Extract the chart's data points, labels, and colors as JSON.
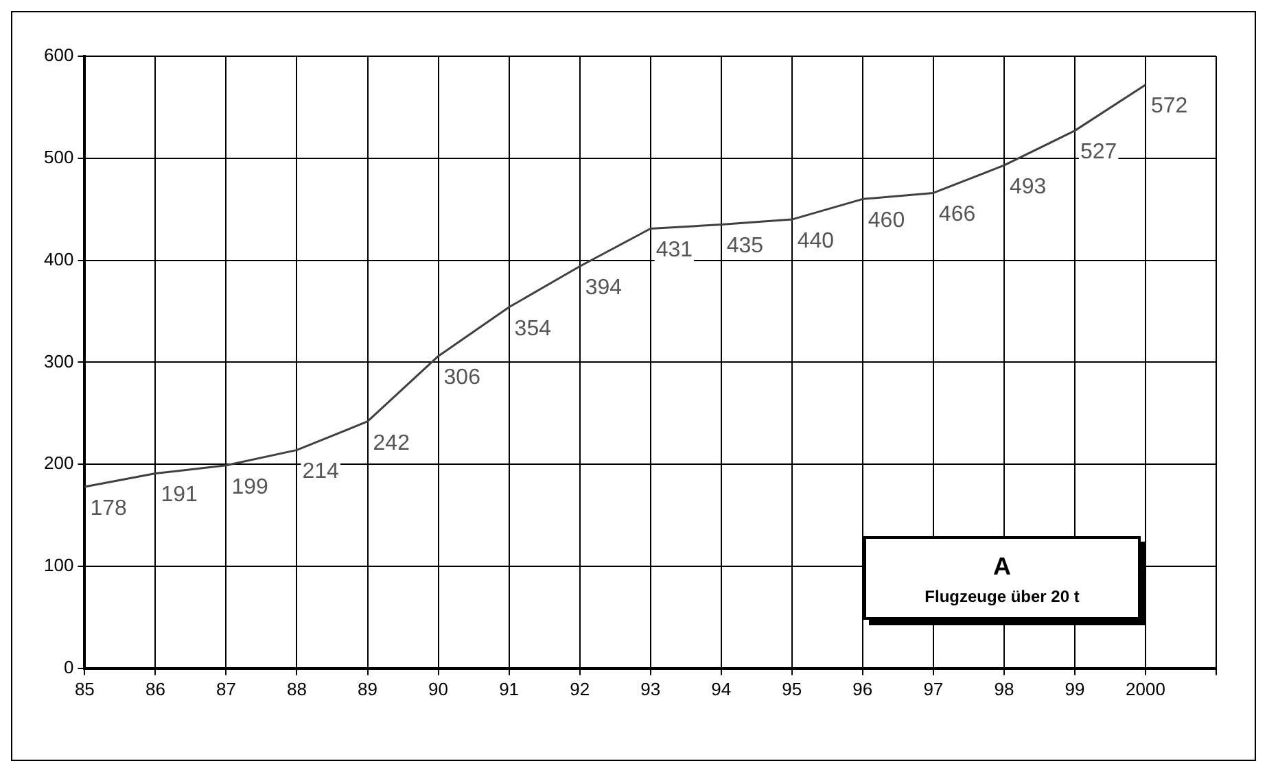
{
  "chart_data": {
    "type": "line",
    "categories": [
      "85",
      "86",
      "87",
      "88",
      "89",
      "90",
      "91",
      "92",
      "93",
      "94",
      "95",
      "96",
      "97",
      "98",
      "99",
      "2000",
      null
    ],
    "series": [
      {
        "color": "#404040",
        "values": [
          178,
          191,
          199,
          214,
          242,
          306,
          354,
          394,
          431,
          435,
          440,
          460,
          466,
          493,
          527,
          572,
          null
        ]
      }
    ],
    "ylim": [
      0,
      600
    ],
    "yticks": [
      0,
      100,
      200,
      300,
      400,
      500,
      600
    ],
    "grid": true,
    "legend": false,
    "marker": "none",
    "line_style": "solid",
    "data_labels": true,
    "annotations": [
      "A",
      "Flugzeuge über 20 t"
    ]
  }
}
